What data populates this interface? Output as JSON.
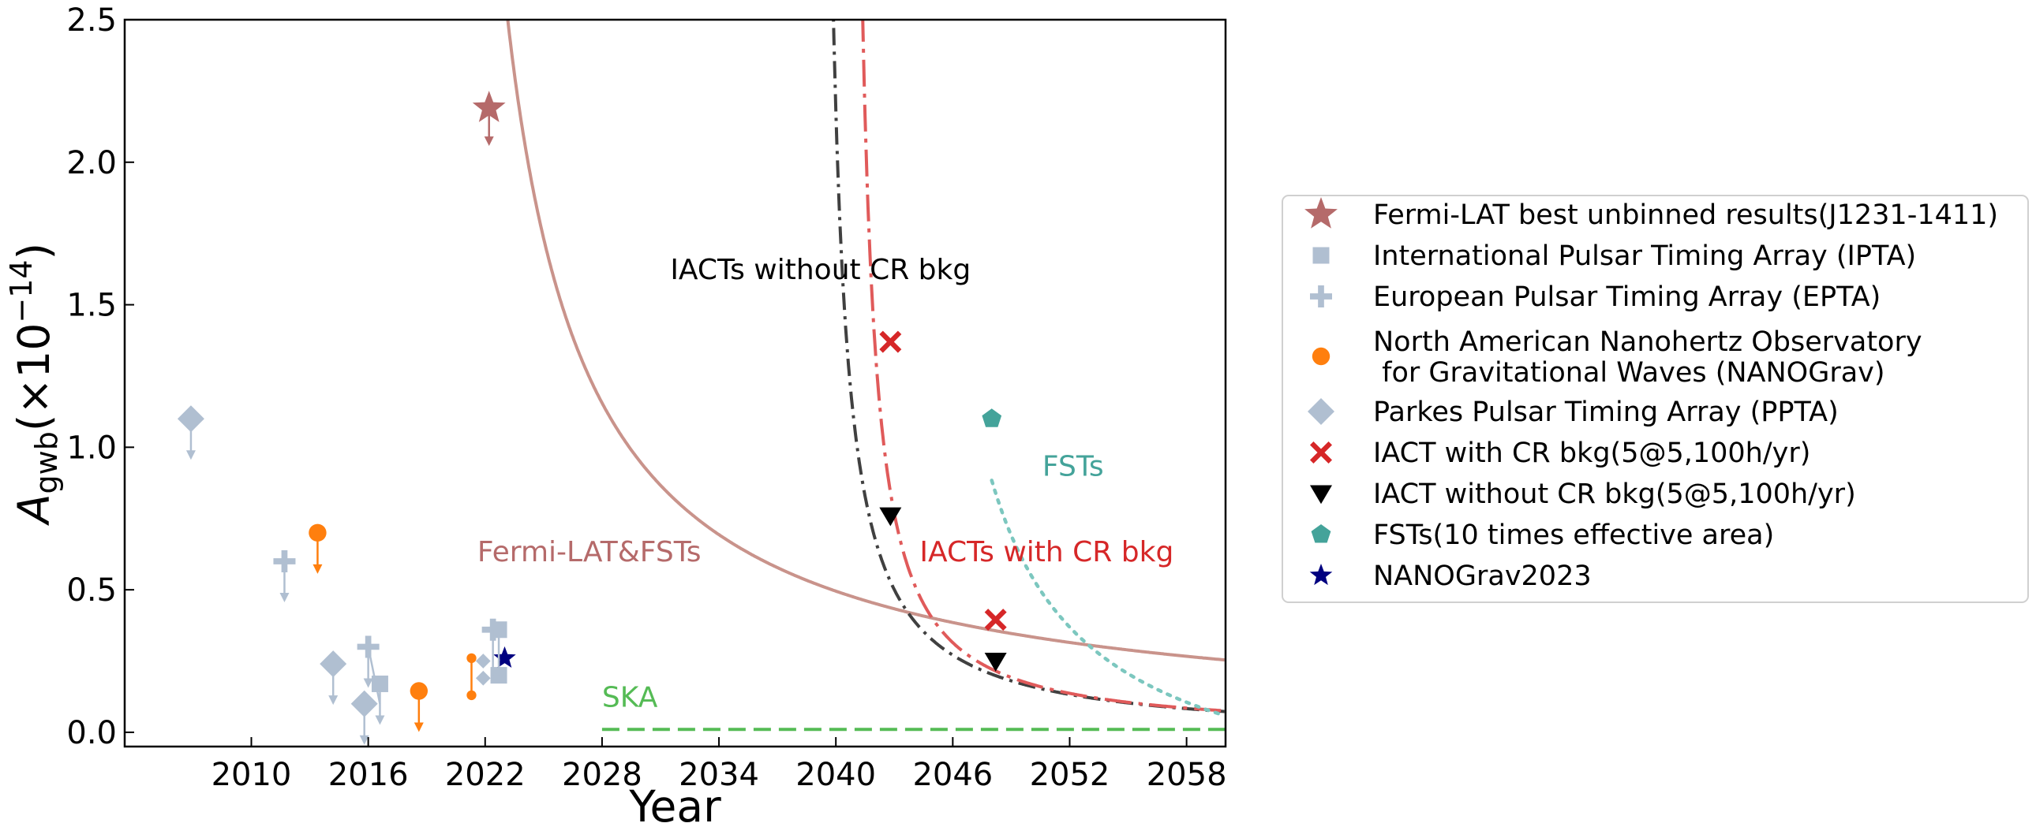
{
  "chart_data": {
    "type": "line",
    "xlabel": "Year",
    "ylabel": {
      "base": "A",
      "sub": "gwb",
      "text": "(×10",
      "exp": "−14",
      "close": ")"
    },
    "xlim": [
      2003.5,
      2060
    ],
    "ylim": [
      -0.05,
      2.5
    ],
    "xticks": [
      2010,
      2016,
      2022,
      2028,
      2034,
      2040,
      2046,
      2052,
      2058
    ],
    "xtick_labels": [
      "2010",
      "2016",
      "2022",
      "2028",
      "2034",
      "2040",
      "2046",
      "2052",
      "2058"
    ],
    "yticks": [
      0.0,
      0.5,
      1.0,
      1.5,
      2.0,
      2.5
    ],
    "ytick_labels": [
      "0.0",
      "0.5",
      "1.0",
      "1.5",
      "2.0",
      "2.5"
    ],
    "colors": {
      "fermi": "#b56a6a",
      "fermi_curve": "#c9938b",
      "pta": "#b0bfd1",
      "nanograv": "#ff7f0e",
      "iact_cr": "#d62728",
      "iact_cr_curve": "#e05a5a",
      "iact_nocr": "#000000",
      "iact_nocr_curve": "#404040",
      "fsts": "#44a39a",
      "fsts_curve": "#7cc7bf",
      "ska": "#55bb55",
      "ng2023": "#000080"
    },
    "curves": [
      {
        "name": "Fermi-LAT&FSTs",
        "style": "solid",
        "color_key": "fermi_curve",
        "x0": 2019.0,
        "k": 10.4,
        "p": 1.0,
        "c": 0.0,
        "x_end": 2060
      },
      {
        "name": "IACTs without CR bkg",
        "style": "dashdot",
        "color_key": "iact_nocr_curve",
        "x0": 2039.0,
        "k": 2.2,
        "p": 1.04,
        "c": -0.02,
        "x_end": 2060
      },
      {
        "name": "IACTs with CR bkg",
        "style": "dashdot_long",
        "color_key": "iact_cr_curve",
        "x0": 2040.5,
        "k": 2.16,
        "p": 1.13,
        "c": 0.0,
        "x_end": 2060
      },
      {
        "name": "FSTs",
        "style": "dotted",
        "color_key": "fsts_curve",
        "x0": 2043.5,
        "k": 4.4,
        "p": 0.84,
        "c": -0.36,
        "x_start": 2048,
        "x_end": 2060
      },
      {
        "name": "SKA",
        "style": "dashed",
        "color_key": "ska",
        "constant": 0.01,
        "x_start": 2028,
        "x_end": 2060
      }
    ],
    "series": [
      {
        "name": "Fermi-LAT best unbinned results(J1231-1411)",
        "marker": "star",
        "color_key": "fermi",
        "points": [
          {
            "x": 2022.2,
            "y": 2.19,
            "upper_limit": true
          }
        ]
      },
      {
        "name": "International Pulsar Timing Array (IPTA)",
        "marker": "square",
        "color_key": "pta",
        "points": [
          {
            "x": 2016.6,
            "y": 0.17,
            "upper_limit": true
          },
          {
            "x": 2022.7,
            "y": 0.36
          },
          {
            "x": 2022.7,
            "y": 0.2
          }
        ]
      },
      {
        "name": "European Pulsar Timing Array (EPTA)",
        "marker": "plus",
        "color_key": "pta",
        "points": [
          {
            "x": 2011.7,
            "y": 0.6,
            "upper_limit": true
          },
          {
            "x": 2016.0,
            "y": 0.3,
            "upper_limit": true
          },
          {
            "x": 2022.4,
            "y": 0.36
          }
        ]
      },
      {
        "name": "North American Nanohertz Observatory\n for Gravitational Waves (NANOGrav)",
        "marker": "circle",
        "color_key": "nanograv",
        "points": [
          {
            "x": 2013.4,
            "y": 0.7,
            "upper_limit": true
          },
          {
            "x": 2018.6,
            "y": 0.145,
            "upper_limit": true
          },
          {
            "x": 2021.3,
            "y": 0.26,
            "small": true
          },
          {
            "x": 2021.3,
            "y": 0.13,
            "small": true
          }
        ]
      },
      {
        "name": "Parkes Pulsar Timing Array (PPTA)",
        "marker": "diamond",
        "color_key": "pta",
        "points": [
          {
            "x": 2006.9,
            "y": 1.1,
            "upper_limit": true
          },
          {
            "x": 2014.2,
            "y": 0.24,
            "upper_limit": true
          },
          {
            "x": 2015.8,
            "y": 0.1,
            "upper_limit": true
          },
          {
            "x": 2021.9,
            "y": 0.25,
            "small": true
          },
          {
            "x": 2021.9,
            "y": 0.19,
            "small": true
          }
        ]
      },
      {
        "name": "IACT with CR bkg(5@5,100h/yr)",
        "marker": "x",
        "color_key": "iact_cr",
        "points": [
          {
            "x": 2042.8,
            "y": 1.37
          },
          {
            "x": 2048.2,
            "y": 0.395
          }
        ]
      },
      {
        "name": "IACT without CR bkg(5@5,100h/yr)",
        "marker": "triangle_down",
        "color_key": "iact_nocr",
        "points": [
          {
            "x": 2042.8,
            "y": 0.76
          },
          {
            "x": 2048.2,
            "y": 0.25
          }
        ]
      },
      {
        "name": "FSTs(10 times effective area)",
        "marker": "pentagon",
        "color_key": "fsts",
        "points": [
          {
            "x": 2048.0,
            "y": 1.1
          }
        ]
      },
      {
        "name": "NANOGrav2023",
        "marker": "star",
        "color_key": "ng2023",
        "points": [
          {
            "x": 2023.0,
            "y": 0.26
          }
        ]
      }
    ],
    "annotations": [
      {
        "text": "IACTs without CR bkg",
        "x": 2031.5,
        "y": 1.59,
        "color_key": "iact_nocr"
      },
      {
        "text": "FSTs",
        "x": 2050.6,
        "y": 0.9,
        "color_key": "fsts"
      },
      {
        "text": "Fermi-LAT&FSTs",
        "x": 2021.6,
        "y": 0.6,
        "color_key": "fermi"
      },
      {
        "text": "IACTs with CR bkg",
        "x": 2044.3,
        "y": 0.6,
        "color_key": "iact_cr"
      },
      {
        "text": "SKA",
        "x": 2028.0,
        "y": 0.09,
        "color_key": "ska"
      }
    ],
    "legend": {
      "position": "center-right outside"
    }
  }
}
